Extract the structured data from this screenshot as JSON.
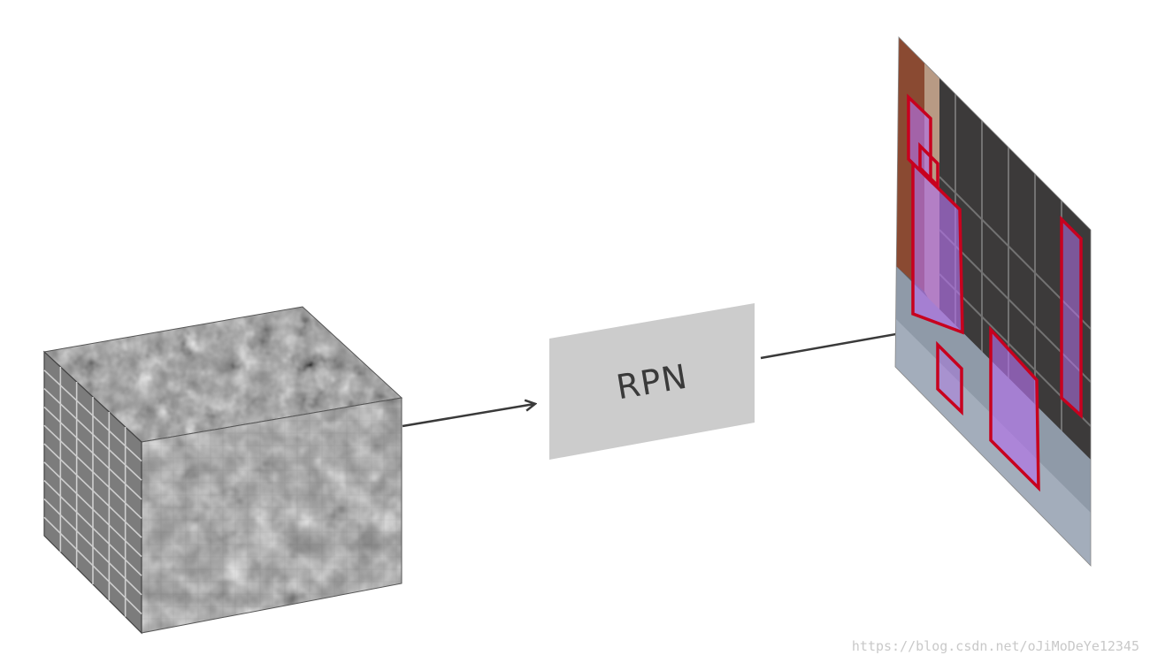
{
  "diagram": {
    "rpn_label": "RPN",
    "colors": {
      "box_fill": "#cccccc",
      "arrow": "#3a3a3a",
      "proposal_stroke": "#c8001e",
      "proposal_fill": "#b070e8"
    },
    "cube_grid": {
      "depth_cells": 6,
      "height_cells": 10
    },
    "proposal_count": 6
  },
  "watermark": "https://blog.csdn.net/oJiMoDeYe12345"
}
